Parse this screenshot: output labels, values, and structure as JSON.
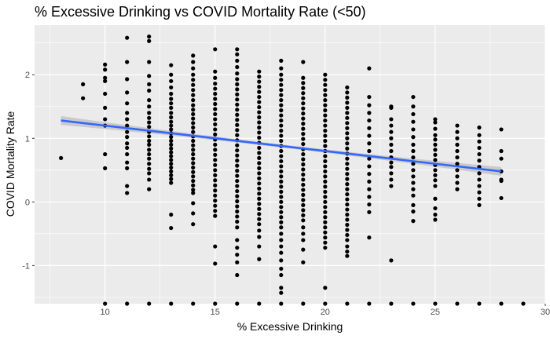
{
  "chart_data": {
    "type": "scatter",
    "title": "% Excessive Drinking vs COVID Mortality Rate (<50)",
    "xlabel": "% Excessive Drinking",
    "ylabel": "COVID Mortality Rate",
    "xlim": [
      6.8,
      30.0
    ],
    "ylim": [
      -1.6,
      2.78
    ],
    "x_ticks": [
      10,
      15,
      20,
      25,
      30
    ],
    "y_ticks": [
      -1,
      0,
      1,
      2
    ],
    "grid": true,
    "colors": {
      "panel": "#ebebeb",
      "grid": "#ffffff",
      "points": "#000000",
      "trend_line": "#3366ff",
      "confidence_band": "#c6c6c6"
    },
    "trend_line": {
      "x": [
        8,
        28
      ],
      "y": [
        1.28,
        0.48
      ],
      "band_halfwidth_at_ends": 0.07,
      "band_halfwidth_at_center": 0.025
    },
    "scatter_points_by_x": [
      {
        "x": 8,
        "y": [
          0.69
        ]
      },
      {
        "x": 9,
        "y": [
          1.85,
          1.63
        ]
      },
      {
        "x": 10,
        "y": [
          2.16,
          2.08,
          1.95,
          1.9,
          1.7,
          1.48,
          1.3,
          1.2,
          0.75,
          0.53,
          -1.6
        ]
      },
      {
        "x": 11,
        "y": [
          2.58,
          2.2,
          1.93,
          1.72,
          1.55,
          1.4,
          1.3,
          1.2,
          1.1,
          1.02,
          0.92,
          0.85,
          0.75,
          0.62,
          0.53,
          0.25,
          0.14,
          -1.6
        ]
      },
      {
        "x": 12,
        "y": [
          2.6,
          2.53,
          2.2,
          1.98,
          1.85,
          1.75,
          1.6,
          1.5,
          1.4,
          1.32,
          1.25,
          1.18,
          1.1,
          1.03,
          0.96,
          0.9,
          0.82,
          0.75,
          0.68,
          0.6,
          0.52,
          0.45,
          0.35,
          0.2,
          -1.6
        ]
      },
      {
        "x": 13,
        "y": [
          2.15,
          2.0,
          1.9,
          1.8,
          1.7,
          1.62,
          1.55,
          1.48,
          1.4,
          1.33,
          1.26,
          1.2,
          1.14,
          1.08,
          1.02,
          0.96,
          0.9,
          0.84,
          0.78,
          0.72,
          0.66,
          0.6,
          0.54,
          0.48,
          0.42,
          0.36,
          0.3,
          -0.2,
          -0.41,
          -1.6
        ]
      },
      {
        "x": 14,
        "y": [
          2.3,
          2.2,
          2.1,
          2.0,
          1.92,
          1.84,
          1.76,
          1.68,
          1.6,
          1.52,
          1.45,
          1.38,
          1.31,
          1.24,
          1.17,
          1.1,
          1.03,
          0.96,
          0.89,
          0.82,
          0.75,
          0.68,
          0.61,
          0.54,
          0.47,
          0.4,
          0.33,
          0.26,
          0.19,
          0.14,
          -0.02,
          -0.18,
          -0.35,
          -1.6
        ]
      },
      {
        "x": 15,
        "y": [
          2.4,
          2.05,
          1.95,
          1.86,
          1.78,
          1.7,
          1.62,
          1.54,
          1.46,
          1.38,
          1.3,
          1.22,
          1.14,
          1.06,
          0.98,
          0.9,
          0.82,
          0.74,
          0.66,
          0.58,
          0.5,
          0.42,
          0.34,
          0.26,
          0.18,
          0.1,
          0.02,
          -0.06,
          -0.14,
          -0.22,
          -0.7,
          -0.97,
          -1.6
        ]
      },
      {
        "x": 16,
        "y": [
          2.4,
          2.32,
          2.22,
          2.12,
          2.02,
          1.93,
          1.85,
          1.77,
          1.69,
          1.61,
          1.53,
          1.45,
          1.37,
          1.29,
          1.21,
          1.13,
          1.05,
          0.97,
          0.89,
          0.81,
          0.73,
          0.65,
          0.57,
          0.49,
          0.41,
          0.33,
          0.25,
          0.17,
          0.09,
          0.01,
          -0.07,
          -0.15,
          -0.23,
          -0.31,
          -0.4,
          -0.6,
          -0.72,
          -0.83,
          -0.95,
          -1.15,
          -1.6
        ]
      },
      {
        "x": 17,
        "y": [
          2.05,
          1.97,
          1.89,
          1.81,
          1.73,
          1.65,
          1.57,
          1.49,
          1.41,
          1.33,
          1.25,
          1.17,
          1.09,
          1.01,
          0.93,
          0.85,
          0.77,
          0.69,
          0.61,
          0.53,
          0.45,
          0.37,
          0.29,
          0.21,
          0.13,
          0.05,
          -0.03,
          -0.11,
          -0.19,
          -0.27,
          -0.35,
          -0.45,
          -0.55,
          -0.7,
          -0.9,
          -1.6
        ]
      },
      {
        "x": 18,
        "y": [
          2.22,
          2.1,
          2.0,
          1.92,
          1.84,
          1.76,
          1.68,
          1.6,
          1.52,
          1.44,
          1.36,
          1.28,
          1.2,
          1.12,
          1.04,
          0.96,
          0.88,
          0.8,
          0.72,
          0.64,
          0.56,
          0.48,
          0.4,
          0.32,
          0.24,
          0.16,
          0.08,
          0.0,
          -0.08,
          -0.16,
          -0.24,
          -0.32,
          -0.4,
          -0.5,
          -0.6,
          -0.7,
          -0.8,
          -0.92,
          -1.05,
          -1.15,
          -1.35,
          -1.43,
          -1.6
        ]
      },
      {
        "x": 19,
        "y": [
          2.2,
          1.95,
          1.87,
          1.79,
          1.71,
          1.63,
          1.55,
          1.47,
          1.39,
          1.31,
          1.23,
          1.15,
          1.07,
          0.99,
          0.91,
          0.83,
          0.75,
          0.67,
          0.59,
          0.51,
          0.43,
          0.35,
          0.27,
          0.19,
          0.11,
          0.03,
          -0.05,
          -0.13,
          -0.21,
          -0.29,
          -0.4,
          -0.5,
          -0.6,
          -0.75,
          -0.95,
          -1.6
        ]
      },
      {
        "x": 20,
        "y": [
          2.0,
          1.92,
          1.84,
          1.76,
          1.68,
          1.6,
          1.52,
          1.44,
          1.36,
          1.28,
          1.2,
          1.12,
          1.04,
          0.96,
          0.88,
          0.8,
          0.72,
          0.64,
          0.56,
          0.48,
          0.4,
          0.32,
          0.24,
          0.16,
          0.08,
          0.0,
          -0.08,
          -0.16,
          -0.24,
          -0.32,
          -0.4,
          -0.48,
          -0.56,
          -0.64,
          -0.72,
          -1.35,
          -1.6
        ]
      },
      {
        "x": 21,
        "y": [
          1.8,
          1.72,
          1.64,
          1.56,
          1.48,
          1.4,
          1.32,
          1.24,
          1.16,
          1.08,
          1.0,
          0.92,
          0.84,
          0.76,
          0.68,
          0.6,
          0.52,
          0.44,
          0.36,
          0.28,
          0.2,
          0.12,
          0.04,
          -0.04,
          -0.12,
          -0.2,
          -0.28,
          -0.36,
          -0.44,
          -0.52,
          -0.6,
          -0.7,
          -0.78,
          -0.85,
          -1.6
        ]
      },
      {
        "x": 22,
        "y": [
          2.1,
          1.65,
          1.52,
          1.4,
          1.28,
          1.16,
          1.04,
          0.92,
          0.8,
          0.68,
          0.56,
          0.44,
          0.32,
          0.2,
          0.08,
          -0.04,
          -0.16,
          -0.56,
          -1.6
        ]
      },
      {
        "x": 23,
        "y": [
          1.5,
          1.48,
          1.3,
          1.2,
          1.1,
          1.0,
          0.9,
          0.8,
          0.7,
          0.62,
          0.55,
          0.45,
          0.35,
          0.25,
          -0.92,
          -1.6
        ]
      },
      {
        "x": 24,
        "y": [
          1.65,
          1.5,
          1.38,
          1.26,
          1.14,
          1.02,
          0.9,
          0.8,
          0.7,
          0.6,
          0.5,
          0.4,
          0.3,
          0.2,
          0.1,
          -0.05,
          -0.15,
          -0.3,
          -1.6
        ]
      },
      {
        "x": 25,
        "y": [
          1.3,
          1.25,
          1.15,
          1.05,
          0.98,
          0.9,
          0.82,
          0.74,
          0.66,
          0.58,
          0.5,
          0.42,
          0.34,
          0.25,
          0.05,
          -0.1,
          -0.2,
          -0.28,
          -1.6
        ]
      },
      {
        "x": 26,
        "y": [
          1.2,
          1.1,
          1.0,
          0.9,
          0.8,
          0.7,
          0.6,
          0.5,
          0.4,
          0.3,
          0.2,
          -1.6
        ]
      },
      {
        "x": 27,
        "y": [
          1.17,
          1.05,
          0.95,
          0.85,
          0.75,
          0.65,
          0.55,
          0.45,
          0.35,
          0.25,
          0.15,
          0.05,
          -0.05,
          -1.6
        ]
      },
      {
        "x": 28,
        "y": [
          1.14,
          0.8,
          0.68,
          0.48,
          0.35,
          0.33,
          0.06,
          -1.6
        ]
      },
      {
        "x": 29,
        "y": [
          -1.6
        ]
      }
    ]
  }
}
